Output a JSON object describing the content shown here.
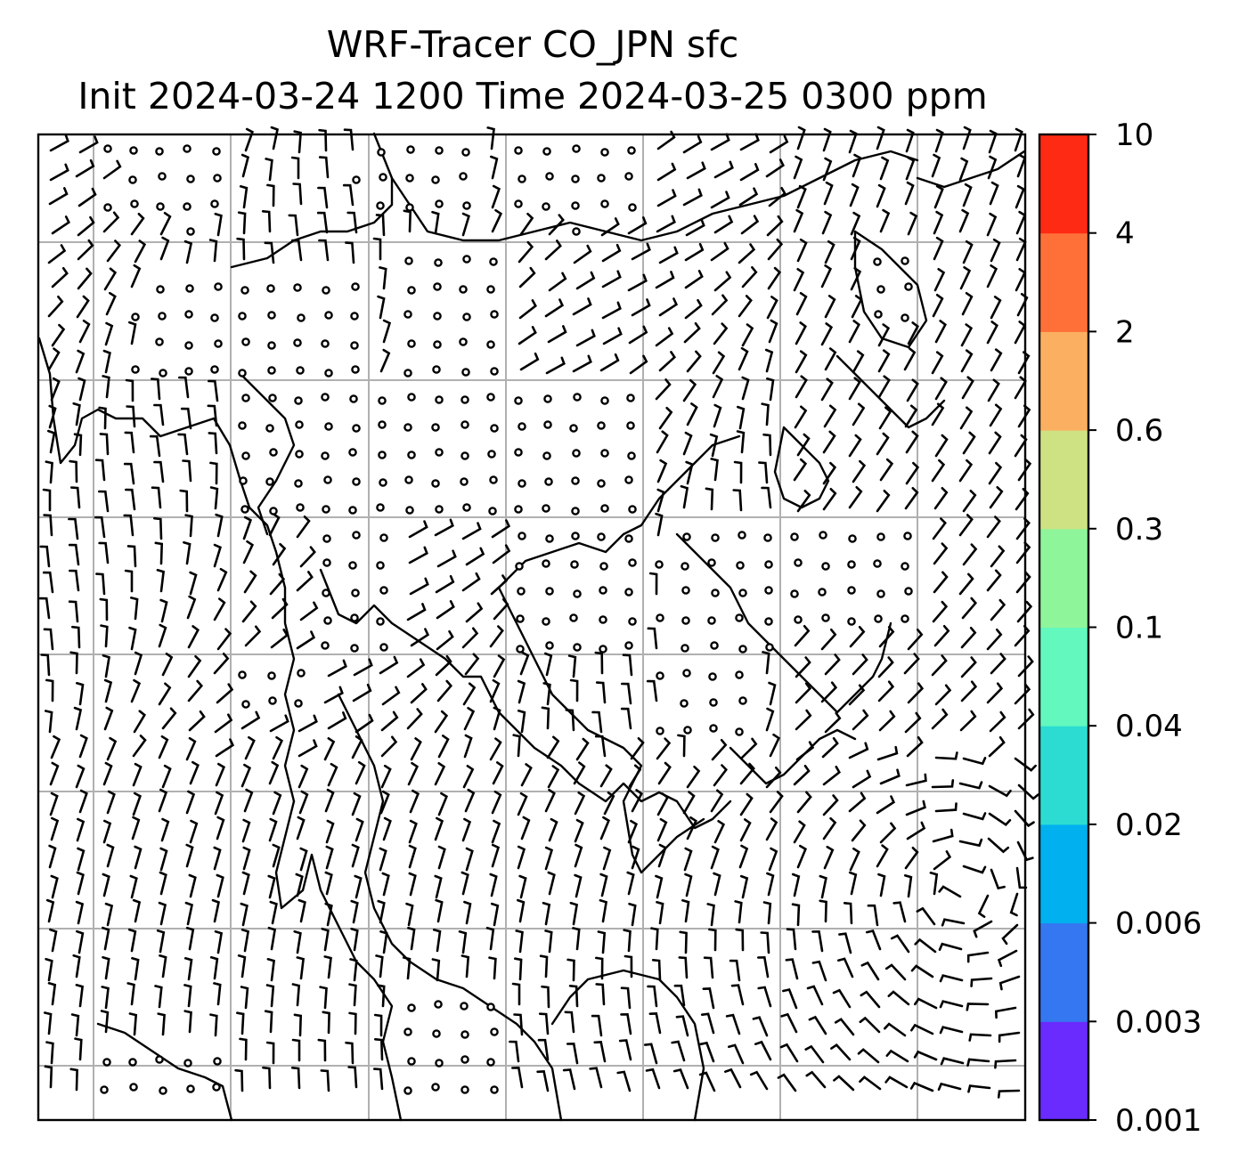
{
  "title": {
    "line1": "WRF-Tracer CO_JPN sfc",
    "line2": "Init 2024-03-24 1200 Time 2024-03-25 0300 ppm"
  },
  "colorbar": {
    "levels": [
      "0.001",
      "0.003",
      "0.006",
      "0.02",
      "0.04",
      "0.1",
      "0.3",
      "0.6",
      "2",
      "4",
      "10"
    ],
    "colors": [
      "#6a2bff",
      "#3577f0",
      "#00b0ef",
      "#2cdcd2",
      "#62f8be",
      "#8ff59a",
      "#cfe283",
      "#fbb061",
      "#ff7038",
      "#ff2a14"
    ]
  },
  "map": {
    "gridlines": true,
    "wind_symbol": "wind-barbs",
    "calm_symbol": "calm-circle"
  }
}
